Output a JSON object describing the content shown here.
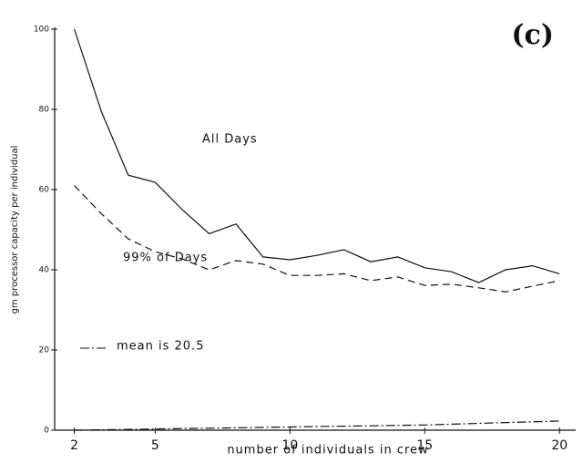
{
  "chart_data": {
    "type": "line",
    "panel_label": "(c)",
    "x_label": "number of individuals in crew",
    "y_label": "gm processor capacity per individual",
    "x": [
      2,
      3,
      4,
      5,
      6,
      7,
      8,
      9,
      10,
      11,
      12,
      13,
      14,
      15,
      16,
      17,
      18,
      19,
      20
    ],
    "series": [
      {
        "name": "All Days",
        "color": "#111111",
        "dash": "none",
        "values": [
          100,
          79.5,
          63.6,
          61.8,
          55,
          49,
          51.4,
          43.2,
          42.5,
          43.6,
          45,
          42,
          43.2,
          40.5,
          39.5,
          36.8,
          40,
          41,
          39
        ]
      },
      {
        "name": "99% of Days",
        "color": "#111111",
        "dash": "8,5",
        "values": [
          61,
          54,
          47.7,
          44.5,
          42.7,
          40,
          42.3,
          41.4,
          38.6,
          38.6,
          39,
          37.3,
          38.2,
          36.1,
          36.4,
          35.5,
          34.5,
          35.9,
          37.3
        ]
      },
      {
        "name": "mean is 20.5",
        "color": "#111111",
        "dash": "10,3,2,3",
        "values": [
          0,
          0.1,
          0.2,
          0.3,
          0.4,
          0.5,
          0.6,
          0.7,
          0.8,
          0.9,
          1.0,
          1.1,
          1.2,
          1.3,
          1.5,
          1.7,
          1.9,
          2.1,
          2.3
        ]
      }
    ],
    "xlim": [
      1.27,
      20.6
    ],
    "xticks": [
      2,
      5,
      10,
      15,
      20
    ],
    "ylim": [
      0,
      100
    ],
    "yticks": [
      0,
      20,
      40,
      60,
      80,
      100
    ]
  }
}
